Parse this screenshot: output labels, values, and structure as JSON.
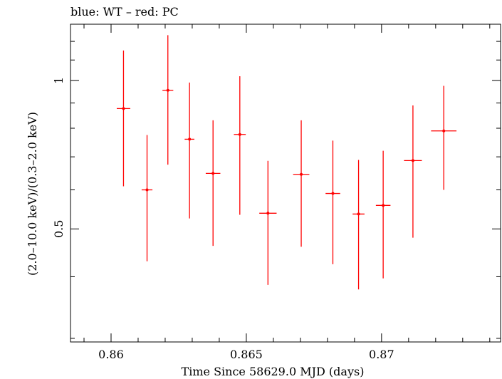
{
  "chart_data": {
    "type": "scatter",
    "title": "blue: WT – red: PC",
    "xlabel": "Time Since 58629.0 MJD (days)",
    "ylabel": "(2.0–10.0 keV)/(0.3–2.0 keV)",
    "xlim": [
      0.8585,
      0.8744
    ],
    "ylim": [
      0.295,
      1.3
    ],
    "y_scale": "log",
    "x_ticks": [
      0.86,
      0.865,
      0.87
    ],
    "x_tick_labels": [
      "0.86",
      "0.865",
      "0.87"
    ],
    "y_ticks": [
      0.5,
      1
    ],
    "y_tick_labels": [
      "0.5",
      "1"
    ],
    "grid": false,
    "series": [
      {
        "color": "#ff0000",
        "points": [
          {
            "x": 0.86046,
            "y": 0.877,
            "xerr": 0.00025,
            "ylo": 0.61,
            "yhi": 1.15
          },
          {
            "x": 0.86133,
            "y": 0.6,
            "xerr": 0.0002,
            "ylo": 0.43,
            "yhi": 0.775
          },
          {
            "x": 0.8621,
            "y": 0.955,
            "xerr": 0.0002,
            "ylo": 0.675,
            "yhi": 1.235
          },
          {
            "x": 0.8629,
            "y": 0.76,
            "xerr": 0.00018,
            "ylo": 0.525,
            "yhi": 0.99
          },
          {
            "x": 0.86377,
            "y": 0.648,
            "xerr": 0.00027,
            "ylo": 0.462,
            "yhi": 0.83
          },
          {
            "x": 0.86476,
            "y": 0.777,
            "xerr": 0.00022,
            "ylo": 0.534,
            "yhi": 1.02
          },
          {
            "x": 0.8658,
            "y": 0.538,
            "xerr": 0.00032,
            "ylo": 0.385,
            "yhi": 0.687
          },
          {
            "x": 0.86703,
            "y": 0.645,
            "xerr": 0.0003,
            "ylo": 0.46,
            "yhi": 0.83
          },
          {
            "x": 0.8682,
            "y": 0.59,
            "xerr": 0.00027,
            "ylo": 0.424,
            "yhi": 0.755
          },
          {
            "x": 0.86915,
            "y": 0.536,
            "xerr": 0.00022,
            "ylo": 0.377,
            "yhi": 0.69
          },
          {
            "x": 0.87006,
            "y": 0.558,
            "xerr": 0.00027,
            "ylo": 0.397,
            "yhi": 0.72
          },
          {
            "x": 0.87116,
            "y": 0.688,
            "xerr": 0.00033,
            "ylo": 0.48,
            "yhi": 0.89
          },
          {
            "x": 0.8723,
            "y": 0.79,
            "xerr": 0.00047,
            "ylo": 0.6,
            "yhi": 0.975
          }
        ]
      }
    ]
  }
}
